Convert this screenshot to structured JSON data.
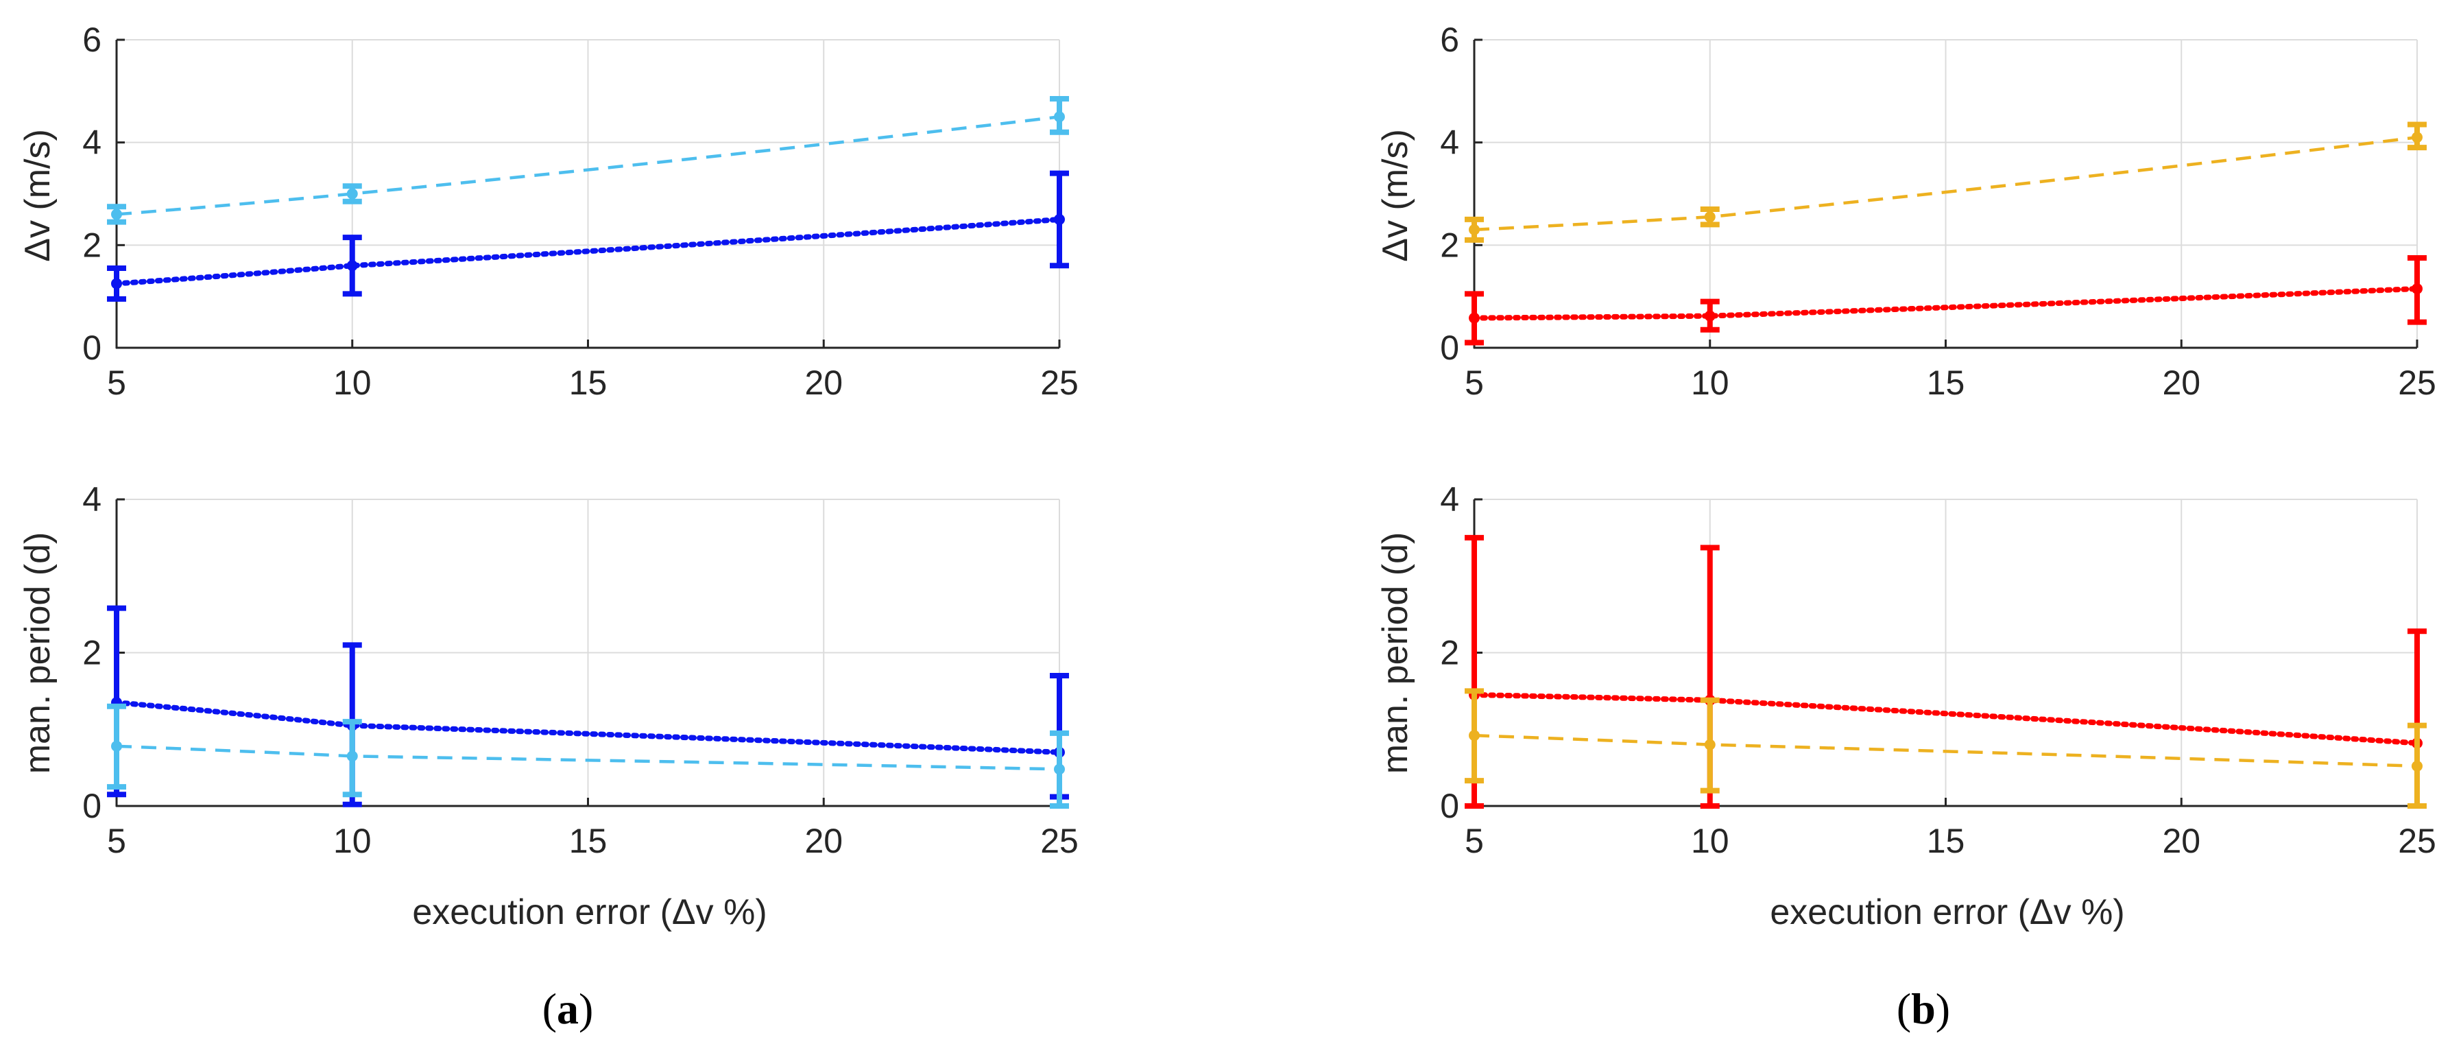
{
  "chart_data": [
    {
      "id": "a_top",
      "type": "line",
      "panel": "a",
      "xlabel": "",
      "ylabel": "Δv (m/s)",
      "xlim": [
        5,
        25
      ],
      "ylim": [
        0,
        6
      ],
      "xticks": [
        "5",
        "10",
        "15",
        "20",
        "25"
      ],
      "yticks": [
        "0",
        "2",
        "4",
        "6"
      ],
      "grid": true,
      "series": [
        {
          "name": "dark blue",
          "color": "#0a14f0",
          "style": "dotted",
          "x": [
            5,
            10,
            25
          ],
          "y": [
            1.25,
            1.6,
            2.5
          ],
          "err_low": [
            0.95,
            1.05,
            1.6
          ],
          "err_high": [
            1.55,
            2.15,
            3.4
          ]
        },
        {
          "name": "light blue",
          "color": "#4dbeee",
          "style": "dashed",
          "x": [
            5,
            10,
            25
          ],
          "y": [
            2.6,
            3.0,
            4.5
          ],
          "err_low": [
            2.45,
            2.85,
            4.2
          ],
          "err_high": [
            2.75,
            3.15,
            4.85
          ]
        }
      ]
    },
    {
      "id": "a_bottom",
      "type": "line",
      "panel": "a",
      "xlabel": "execution error (Δv %)",
      "ylabel": "man. period (d)",
      "xlim": [
        5,
        25
      ],
      "ylim": [
        0,
        4
      ],
      "xticks": [
        "5",
        "10",
        "15",
        "20",
        "25"
      ],
      "yticks": [
        "0",
        "2",
        "4"
      ],
      "grid": true,
      "series": [
        {
          "name": "dark blue",
          "color": "#0a14f0",
          "style": "dotted",
          "x": [
            5,
            10,
            25
          ],
          "y": [
            1.35,
            1.05,
            0.7
          ],
          "err_low": [
            0.15,
            0.02,
            0.12
          ],
          "err_high": [
            2.58,
            2.1,
            1.7
          ]
        },
        {
          "name": "light blue",
          "color": "#4dbeee",
          "style": "dashed",
          "x": [
            5,
            10,
            25
          ],
          "y": [
            0.78,
            0.65,
            0.48
          ],
          "err_low": [
            0.25,
            0.15,
            0.0
          ],
          "err_high": [
            1.3,
            1.1,
            0.95
          ]
        }
      ]
    },
    {
      "id": "b_top",
      "type": "line",
      "panel": "b",
      "xlabel": "",
      "ylabel": "Δv (m/s)",
      "xlim": [
        5,
        25
      ],
      "ylim": [
        0,
        6
      ],
      "xticks": [
        "5",
        "10",
        "15",
        "20",
        "25"
      ],
      "yticks": [
        "0",
        "2",
        "4",
        "6"
      ],
      "grid": true,
      "series": [
        {
          "name": "red",
          "color": "#ff0000",
          "style": "dotted",
          "x": [
            5,
            10,
            25
          ],
          "y": [
            0.58,
            0.62,
            1.15
          ],
          "err_low": [
            0.1,
            0.35,
            0.5
          ],
          "err_high": [
            1.05,
            0.9,
            1.75
          ]
        },
        {
          "name": "orange",
          "color": "#edb120",
          "style": "dashed",
          "x": [
            5,
            10,
            25
          ],
          "y": [
            2.3,
            2.55,
            4.1
          ],
          "err_low": [
            2.1,
            2.4,
            3.9
          ],
          "err_high": [
            2.5,
            2.7,
            4.35
          ]
        }
      ]
    },
    {
      "id": "b_bottom",
      "type": "line",
      "panel": "b",
      "xlabel": "execution error (Δv %)",
      "ylabel": "man. period (d)",
      "xlim": [
        5,
        25
      ],
      "ylim": [
        0,
        4
      ],
      "xticks": [
        "5",
        "10",
        "15",
        "20",
        "25"
      ],
      "yticks": [
        "0",
        "2",
        "4"
      ],
      "grid": true,
      "series": [
        {
          "name": "red",
          "color": "#ff0000",
          "style": "dotted",
          "x": [
            5,
            10,
            25
          ],
          "y": [
            1.45,
            1.38,
            0.82
          ],
          "err_low": [
            0.0,
            0.0,
            0.0
          ],
          "err_high": [
            3.5,
            3.37,
            2.28
          ]
        },
        {
          "name": "orange",
          "color": "#edb120",
          "style": "dashed",
          "x": [
            5,
            10,
            25
          ],
          "y": [
            0.92,
            0.8,
            0.52
          ],
          "err_low": [
            0.33,
            0.2,
            0.0
          ],
          "err_high": [
            1.5,
            1.38,
            1.05
          ]
        }
      ]
    }
  ],
  "panel_labels": {
    "a": {
      "open": "(",
      "letter": "a",
      "close": ")"
    },
    "b": {
      "open": "(",
      "letter": "b",
      "close": ")"
    }
  },
  "colors": {
    "axis": "#262626",
    "grid": "#dcdcdc"
  }
}
